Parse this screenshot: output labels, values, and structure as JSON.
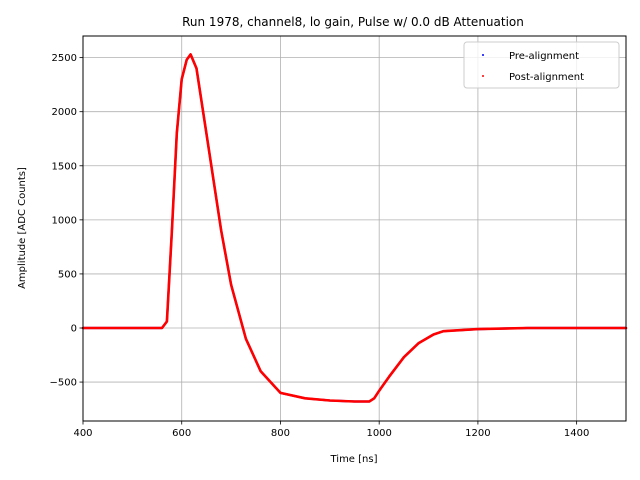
{
  "chart_data": {
    "type": "scatter",
    "title": "Run 1978, channel8, lo gain, Pulse w/ 0.0 dB Attenuation",
    "xlabel": "Time [ns]",
    "ylabel": "Amplitude [ADC Counts]",
    "xlim": [
      400,
      1500
    ],
    "ylim": [
      -860,
      2700
    ],
    "xticks": [
      400,
      600,
      800,
      1000,
      1200,
      1400
    ],
    "yticks": [
      -500,
      0,
      500,
      1000,
      1500,
      2000,
      2500
    ],
    "grid": true,
    "legend_position": "top-right",
    "colors": {
      "pre": "#0000ff",
      "post": "#ff0000"
    },
    "series": [
      {
        "name": "Pre-alignment",
        "color": "#0000ff",
        "x": [
          400,
          560,
          570,
          580,
          590,
          600,
          610,
          618,
          630,
          650,
          680,
          700,
          730,
          760,
          800,
          850,
          900,
          950,
          980,
          990,
          1000,
          1020,
          1050,
          1080,
          1110,
          1130,
          1200,
          1300,
          1400,
          1500
        ],
        "y": [
          0,
          0,
          60,
          900,
          1800,
          2300,
          2480,
          2530,
          2400,
          1800,
          900,
          400,
          -100,
          -400,
          -600,
          -650,
          -670,
          -680,
          -680,
          -650,
          -580,
          -450,
          -270,
          -140,
          -60,
          -30,
          -10,
          0,
          0,
          0
        ]
      },
      {
        "name": "Post-alignment",
        "color": "#ff0000",
        "x": [
          400,
          560,
          570,
          580,
          590,
          600,
          610,
          618,
          630,
          650,
          680,
          700,
          730,
          760,
          800,
          850,
          900,
          950,
          980,
          990,
          1000,
          1020,
          1050,
          1080,
          1110,
          1130,
          1200,
          1300,
          1400,
          1500
        ],
        "y": [
          0,
          0,
          60,
          900,
          1800,
          2300,
          2480,
          2530,
          2400,
          1800,
          900,
          400,
          -100,
          -400,
          -600,
          -650,
          -670,
          -680,
          -680,
          -650,
          -580,
          -450,
          -270,
          -140,
          -60,
          -30,
          -10,
          0,
          0,
          0
        ]
      }
    ]
  }
}
